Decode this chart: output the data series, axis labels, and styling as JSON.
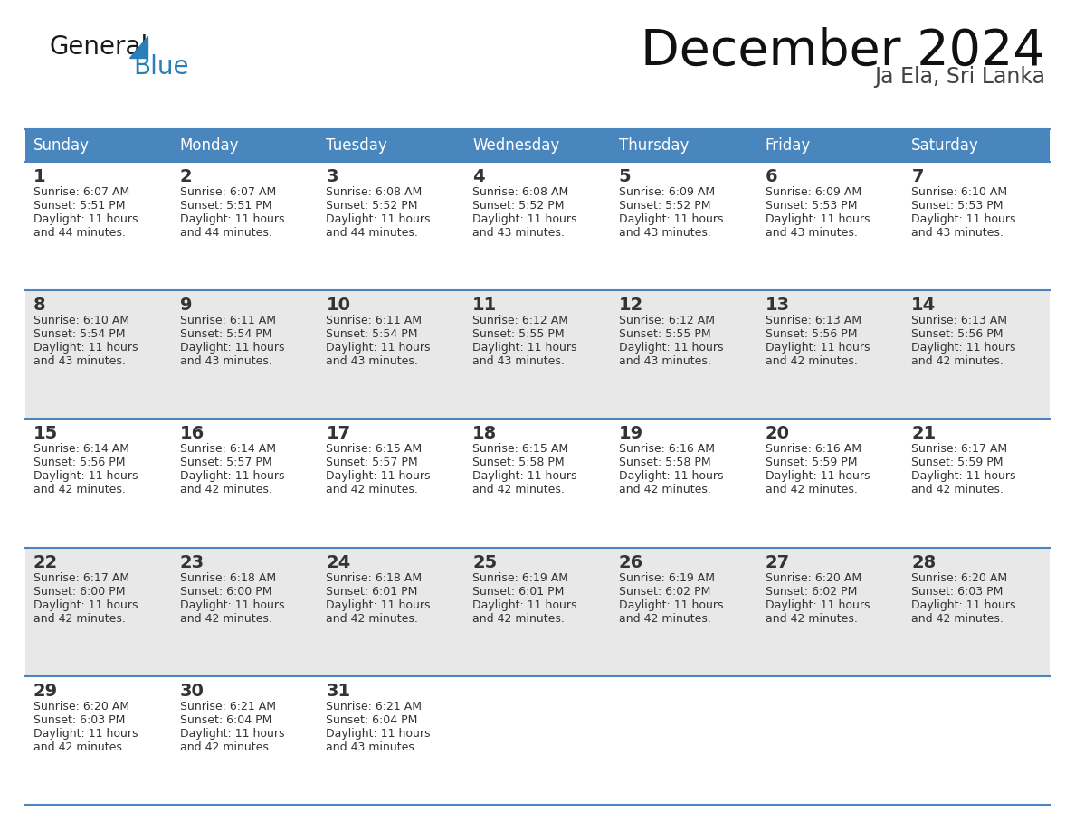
{
  "title": "December 2024",
  "subtitle": "Ja Ela, Sri Lanka",
  "header_color": "#4a86be",
  "header_text_color": "#ffffff",
  "row_bg_white": "#ffffff",
  "row_bg_gray": "#e8e8e8",
  "border_color": "#4a86be",
  "text_color": "#333333",
  "days_of_week": [
    "Sunday",
    "Monday",
    "Tuesday",
    "Wednesday",
    "Thursday",
    "Friday",
    "Saturday"
  ],
  "weeks": [
    [
      {
        "day": "1",
        "sunrise": "6:07 AM",
        "sunset": "5:51 PM",
        "daylight_line2": "and 44 minutes."
      },
      {
        "day": "2",
        "sunrise": "6:07 AM",
        "sunset": "5:51 PM",
        "daylight_line2": "and 44 minutes."
      },
      {
        "day": "3",
        "sunrise": "6:08 AM",
        "sunset": "5:52 PM",
        "daylight_line2": "and 44 minutes."
      },
      {
        "day": "4",
        "sunrise": "6:08 AM",
        "sunset": "5:52 PM",
        "daylight_line2": "and 43 minutes."
      },
      {
        "day": "5",
        "sunrise": "6:09 AM",
        "sunset": "5:52 PM",
        "daylight_line2": "and 43 minutes."
      },
      {
        "day": "6",
        "sunrise": "6:09 AM",
        "sunset": "5:53 PM",
        "daylight_line2": "and 43 minutes."
      },
      {
        "day": "7",
        "sunrise": "6:10 AM",
        "sunset": "5:53 PM",
        "daylight_line2": "and 43 minutes."
      }
    ],
    [
      {
        "day": "8",
        "sunrise": "6:10 AM",
        "sunset": "5:54 PM",
        "daylight_line2": "and 43 minutes."
      },
      {
        "day": "9",
        "sunrise": "6:11 AM",
        "sunset": "5:54 PM",
        "daylight_line2": "and 43 minutes."
      },
      {
        "day": "10",
        "sunrise": "6:11 AM",
        "sunset": "5:54 PM",
        "daylight_line2": "and 43 minutes."
      },
      {
        "day": "11",
        "sunrise": "6:12 AM",
        "sunset": "5:55 PM",
        "daylight_line2": "and 43 minutes."
      },
      {
        "day": "12",
        "sunrise": "6:12 AM",
        "sunset": "5:55 PM",
        "daylight_line2": "and 43 minutes."
      },
      {
        "day": "13",
        "sunrise": "6:13 AM",
        "sunset": "5:56 PM",
        "daylight_line2": "and 42 minutes."
      },
      {
        "day": "14",
        "sunrise": "6:13 AM",
        "sunset": "5:56 PM",
        "daylight_line2": "and 42 minutes."
      }
    ],
    [
      {
        "day": "15",
        "sunrise": "6:14 AM",
        "sunset": "5:56 PM",
        "daylight_line2": "and 42 minutes."
      },
      {
        "day": "16",
        "sunrise": "6:14 AM",
        "sunset": "5:57 PM",
        "daylight_line2": "and 42 minutes."
      },
      {
        "day": "17",
        "sunrise": "6:15 AM",
        "sunset": "5:57 PM",
        "daylight_line2": "and 42 minutes."
      },
      {
        "day": "18",
        "sunrise": "6:15 AM",
        "sunset": "5:58 PM",
        "daylight_line2": "and 42 minutes."
      },
      {
        "day": "19",
        "sunrise": "6:16 AM",
        "sunset": "5:58 PM",
        "daylight_line2": "and 42 minutes."
      },
      {
        "day": "20",
        "sunrise": "6:16 AM",
        "sunset": "5:59 PM",
        "daylight_line2": "and 42 minutes."
      },
      {
        "day": "21",
        "sunrise": "6:17 AM",
        "sunset": "5:59 PM",
        "daylight_line2": "and 42 minutes."
      }
    ],
    [
      {
        "day": "22",
        "sunrise": "6:17 AM",
        "sunset": "6:00 PM",
        "daylight_line2": "and 42 minutes."
      },
      {
        "day": "23",
        "sunrise": "6:18 AM",
        "sunset": "6:00 PM",
        "daylight_line2": "and 42 minutes."
      },
      {
        "day": "24",
        "sunrise": "6:18 AM",
        "sunset": "6:01 PM",
        "daylight_line2": "and 42 minutes."
      },
      {
        "day": "25",
        "sunrise": "6:19 AM",
        "sunset": "6:01 PM",
        "daylight_line2": "and 42 minutes."
      },
      {
        "day": "26",
        "sunrise": "6:19 AM",
        "sunset": "6:02 PM",
        "daylight_line2": "and 42 minutes."
      },
      {
        "day": "27",
        "sunrise": "6:20 AM",
        "sunset": "6:02 PM",
        "daylight_line2": "and 42 minutes."
      },
      {
        "day": "28",
        "sunrise": "6:20 AM",
        "sunset": "6:03 PM",
        "daylight_line2": "and 42 minutes."
      }
    ],
    [
      {
        "day": "29",
        "sunrise": "6:20 AM",
        "sunset": "6:03 PM",
        "daylight_line2": "and 42 minutes."
      },
      {
        "day": "30",
        "sunrise": "6:21 AM",
        "sunset": "6:04 PM",
        "daylight_line2": "and 42 minutes."
      },
      {
        "day": "31",
        "sunrise": "6:21 AM",
        "sunset": "6:04 PM",
        "daylight_line2": "and 43 minutes."
      },
      null,
      null,
      null,
      null
    ]
  ],
  "logo_text_color": "#1a1a1a",
  "logo_blue_color": "#2980b9"
}
